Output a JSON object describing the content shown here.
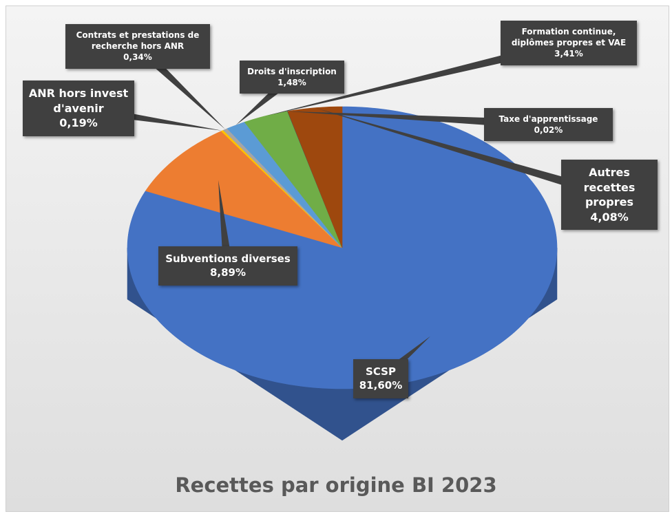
{
  "chart_data": {
    "type": "pie3d",
    "title": "Recettes par origine BI 2023",
    "categories": [
      "SCSP",
      "Subventions diverses",
      "ANR hors invest d'avenir",
      "Contrats et prestations de recherche hors ANR",
      "Droits d'inscription",
      "Formation continue, diplômes propres et VAE",
      "Taxe d'apprentissage",
      "Autres recettes propres"
    ],
    "values": [
      81.6,
      8.89,
      0.19,
      0.34,
      1.48,
      3.41,
      0.02,
      4.08
    ],
    "value_labels": [
      "81,60%",
      "8,89%",
      "0,19%",
      "0,34%",
      "1,48%",
      "3,41%",
      "0,02%",
      "4,08%"
    ],
    "colors": [
      "#4472c4",
      "#ed7d31",
      "#ffc000",
      "#a5a5a5",
      "#5b9bd5",
      "#70ad47",
      "#264478",
      "#9e480e"
    ]
  }
}
